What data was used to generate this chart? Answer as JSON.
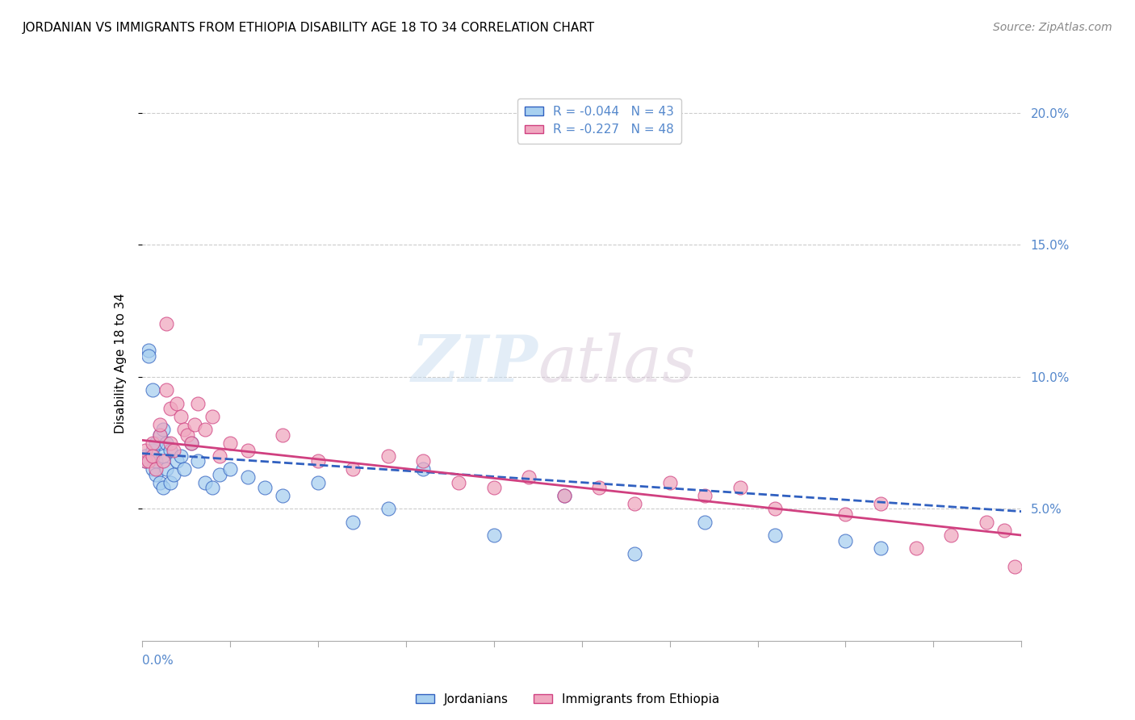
{
  "title": "JORDANIAN VS IMMIGRANTS FROM ETHIOPIA DISABILITY AGE 18 TO 34 CORRELATION CHART",
  "source": "Source: ZipAtlas.com",
  "ylabel": "Disability Age 18 to 34",
  "legend_entry1": "R = -0.044   N = 43",
  "legend_entry2": "R = -0.227   N = 48",
  "legend_label1": "Jordanians",
  "legend_label2": "Immigrants from Ethiopia",
  "xmin": 0.0,
  "xmax": 0.25,
  "ymin": 0.0,
  "ymax": 0.21,
  "yticks": [
    0.05,
    0.1,
    0.15,
    0.2
  ],
  "color_blue": "#a8d0f0",
  "color_pink": "#f0a8c0",
  "color_blue_line": "#3060c0",
  "color_pink_line": "#d04080",
  "dot_size": 150,
  "watermark_zip": "ZIP",
  "watermark_atlas": "atlas",
  "blue_dots_x": [
    0.001,
    0.001,
    0.002,
    0.002,
    0.003,
    0.003,
    0.003,
    0.004,
    0.004,
    0.004,
    0.005,
    0.005,
    0.006,
    0.006,
    0.006,
    0.007,
    0.007,
    0.008,
    0.008,
    0.009,
    0.01,
    0.011,
    0.012,
    0.014,
    0.016,
    0.018,
    0.02,
    0.022,
    0.025,
    0.03,
    0.035,
    0.04,
    0.05,
    0.06,
    0.07,
    0.08,
    0.1,
    0.12,
    0.14,
    0.16,
    0.18,
    0.2,
    0.21
  ],
  "blue_dots_y": [
    0.07,
    0.068,
    0.11,
    0.108,
    0.072,
    0.095,
    0.065,
    0.075,
    0.068,
    0.063,
    0.078,
    0.06,
    0.08,
    0.058,
    0.07,
    0.075,
    0.065,
    0.072,
    0.06,
    0.063,
    0.068,
    0.07,
    0.065,
    0.075,
    0.068,
    0.06,
    0.058,
    0.063,
    0.065,
    0.062,
    0.058,
    0.055,
    0.06,
    0.045,
    0.05,
    0.065,
    0.04,
    0.055,
    0.033,
    0.045,
    0.04,
    0.038,
    0.035
  ],
  "pink_dots_x": [
    0.001,
    0.001,
    0.002,
    0.003,
    0.003,
    0.004,
    0.005,
    0.005,
    0.006,
    0.007,
    0.007,
    0.008,
    0.008,
    0.009,
    0.01,
    0.011,
    0.012,
    0.013,
    0.014,
    0.015,
    0.016,
    0.018,
    0.02,
    0.022,
    0.025,
    0.03,
    0.04,
    0.05,
    0.06,
    0.07,
    0.08,
    0.09,
    0.1,
    0.11,
    0.12,
    0.13,
    0.14,
    0.15,
    0.16,
    0.17,
    0.18,
    0.2,
    0.21,
    0.22,
    0.23,
    0.24,
    0.245,
    0.248
  ],
  "pink_dots_y": [
    0.068,
    0.072,
    0.068,
    0.075,
    0.07,
    0.065,
    0.078,
    0.082,
    0.068,
    0.095,
    0.12,
    0.088,
    0.075,
    0.072,
    0.09,
    0.085,
    0.08,
    0.078,
    0.075,
    0.082,
    0.09,
    0.08,
    0.085,
    0.07,
    0.075,
    0.072,
    0.078,
    0.068,
    0.065,
    0.07,
    0.068,
    0.06,
    0.058,
    0.062,
    0.055,
    0.058,
    0.052,
    0.06,
    0.055,
    0.058,
    0.05,
    0.048,
    0.052,
    0.035,
    0.04,
    0.045,
    0.042,
    0.028
  ],
  "trend_blue_x0": 0.0,
  "trend_blue_y0": 0.071,
  "trend_blue_x1": 0.25,
  "trend_blue_y1": 0.049,
  "trend_pink_x0": 0.0,
  "trend_pink_y0": 0.076,
  "trend_pink_x1": 0.25,
  "trend_pink_y1": 0.04
}
